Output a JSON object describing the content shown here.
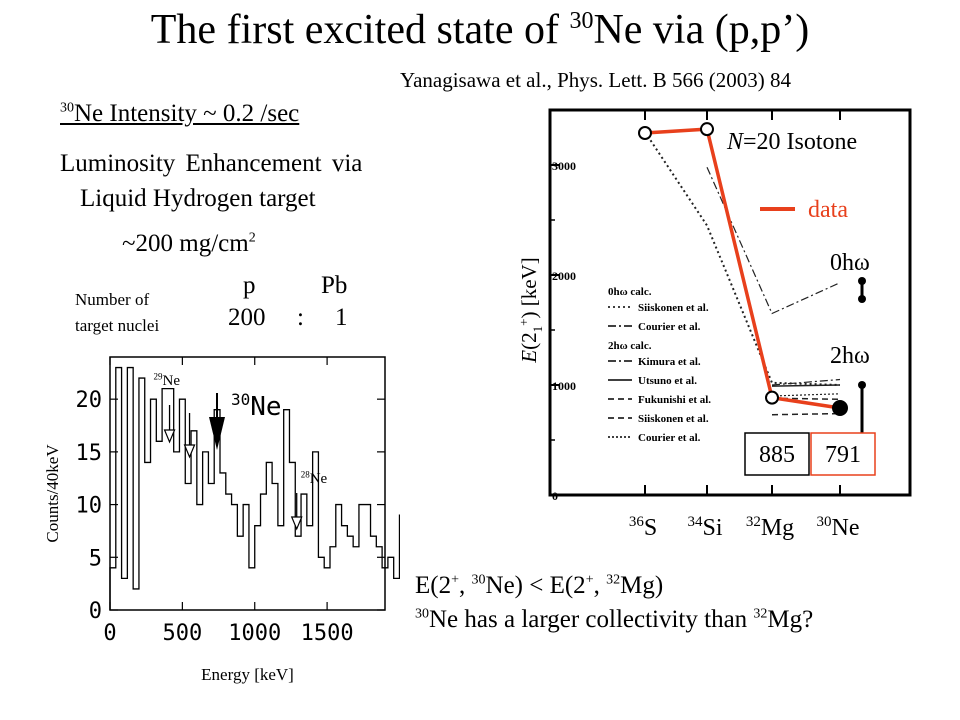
{
  "title": {
    "pre": "The first excited state of ",
    "sup": "30",
    "post": "Ne via (p,p’)"
  },
  "reference": "Yanagisawa et al., Phys. Lett. B 566 (2003) 84",
  "intensity": {
    "sup": "30",
    "text": "Ne Intensity ~ 0.2 /sec"
  },
  "luminosity": {
    "line1": "Luminosity Enhancement via",
    "line2": "Liquid Hydrogen target",
    "thickness_pre": "~200 mg/cm",
    "thickness_sup": "2"
  },
  "target_ratio": {
    "label_line1": "Number of",
    "label_line2": "target nuclei",
    "col1_head": "p",
    "col2_head": "Pb",
    "col1_val": "200",
    "sep": ":",
    "col2_val": "1"
  },
  "conclusion": {
    "line1": {
      "a": "E(2",
      "a_sup": "+",
      "b": ", ",
      "b_sup": "30",
      "c": "Ne) < E(2",
      "c_sup": "+",
      "d": ", ",
      "d_sup": "32",
      "e": "Mg)"
    },
    "line2": {
      "a_sup": "30",
      "a": "Ne has a larger collectivity than ",
      "b_sup": "32",
      "b": "Mg?"
    }
  },
  "colors": {
    "data_line": "#e8401c",
    "box_border": "#e8401c",
    "frame": "#000000"
  },
  "chart_data": [
    {
      "type": "bar",
      "title": "",
      "xlabel": "Energy [keV]",
      "ylabel": "Counts/40keV",
      "xlim": [
        0,
        1900
      ],
      "ylim": [
        0,
        24
      ],
      "x_ticks": [
        "0",
        "500",
        "1000",
        "1500"
      ],
      "y_ticks": [
        "0",
        "5",
        "10",
        "15",
        "20"
      ],
      "annotations": [
        {
          "text": "29Ne",
          "x": 370
        },
        {
          "text": "30Ne",
          "x": 760
        },
        {
          "text": "28Ne",
          "x": 1290
        }
      ],
      "bin_width_keV": 40,
      "values": [
        4,
        23,
        3,
        23,
        2,
        22,
        14,
        20,
        16,
        21,
        21,
        15,
        20,
        12,
        17,
        10,
        15,
        12,
        19,
        13,
        11,
        10,
        7,
        10,
        4,
        8,
        11,
        14,
        12,
        8,
        19,
        14,
        7,
        11,
        8,
        15,
        5,
        4,
        6,
        10,
        8,
        7,
        6,
        10,
        10,
        7,
        6,
        4,
        5,
        3,
        9,
        6,
        4,
        4,
        3,
        2,
        3,
        4,
        5,
        4,
        3,
        3,
        2,
        4,
        6,
        8,
        5,
        3,
        2,
        3,
        3,
        2,
        4,
        3,
        3,
        2,
        2,
        3,
        2,
        2,
        2
      ]
    },
    {
      "type": "line",
      "title": "",
      "ylabel": "E(2_1^+) [keV]",
      "categories": [
        "36S",
        "34Si",
        "32Mg",
        "30Ne"
      ],
      "ylim": [
        0,
        3500
      ],
      "y_ticks": [
        "0",
        "1000",
        "2000",
        "3000"
      ],
      "legend_title": "N=20 Isotone",
      "series": [
        {
          "name": "data",
          "values": [
            3291,
            3326,
            885,
            791
          ]
        },
        {
          "name": "Siiskonen et al.",
          "values": [
            3300,
            2450,
            1020,
            1000
          ]
        },
        {
          "name": "Courier et al.",
          "values": [
            null,
            2980,
            1650,
            1930
          ]
        },
        {
          "name": "Kimura et al.",
          "values": [
            null,
            null,
            1000,
            1050
          ]
        },
        {
          "name": "Utsuno et al.",
          "values": [
            null,
            null,
            990,
            1000
          ]
        },
        {
          "name": "Fukunishi et al.",
          "values": [
            null,
            null,
            880,
            870
          ]
        },
        {
          "name": "Siiskonen et al.",
          "values": [
            null,
            null,
            730,
            740
          ]
        },
        {
          "name": "Courier et al.",
          "values": [
            null,
            null,
            900,
            920
          ]
        }
      ],
      "legend_groups": [
        {
          "header": "0hω calc.",
          "entries": [
            "Siiskonen et al.",
            "Courier et al."
          ]
        },
        {
          "header": "2hω calc.",
          "entries": [
            "Kimura et al.",
            "Utsuno et al.",
            "Fukunishi et al.",
            "Siiskonen et al.",
            "Courier et al."
          ]
        }
      ],
      "data_labels": [
        {
          "category": "32Mg",
          "text": "885"
        },
        {
          "category": "30Ne",
          "text": "791"
        }
      ],
      "side_labels": {
        "zero": "0hω",
        "two": "2hω",
        "data": "data"
      }
    }
  ]
}
